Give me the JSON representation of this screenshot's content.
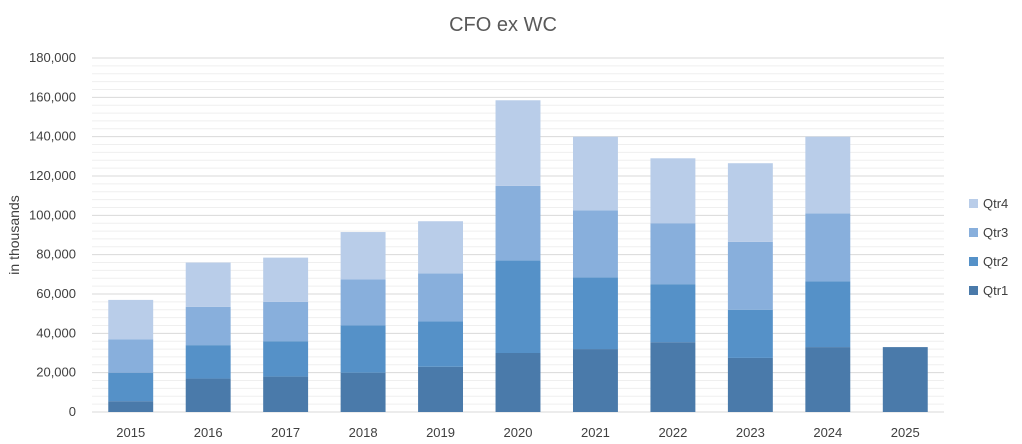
{
  "chart_data": {
    "type": "bar",
    "stacked": true,
    "title": "CFO ex WC",
    "xlabel": "",
    "ylabel": "in thousands",
    "ylim": [
      0,
      180000
    ],
    "yticks": [
      0,
      20000,
      40000,
      60000,
      80000,
      100000,
      120000,
      140000,
      160000,
      180000
    ],
    "ytick_labels": [
      "0",
      "20,000",
      "40,000",
      "60,000",
      "80,000",
      "100,000",
      "120,000",
      "140,000",
      "160,000",
      "180,000"
    ],
    "grid": true,
    "legend_position": "right",
    "categories": [
      "2015",
      "2016",
      "2017",
      "2018",
      "2019",
      "2020",
      "2021",
      "2022",
      "2023",
      "2024",
      "2025"
    ],
    "series": [
      {
        "name": "Qtr1",
        "color": "#4a7aaa",
        "values": [
          5500,
          17000,
          18000,
          20000,
          23000,
          30000,
          32000,
          35500,
          27500,
          33000,
          33000
        ]
      },
      {
        "name": "Qtr2",
        "color": "#5591c8",
        "values": [
          14500,
          17000,
          18000,
          24000,
          23000,
          47000,
          36500,
          29500,
          24500,
          33500,
          0
        ]
      },
      {
        "name": "Qtr3",
        "color": "#88afdc",
        "values": [
          17000,
          19500,
          20000,
          23500,
          24500,
          38000,
          34000,
          31000,
          34500,
          34500,
          0
        ]
      },
      {
        "name": "Qtr4",
        "color": "#b9cde9",
        "values": [
          20000,
          22500,
          22500,
          24000,
          26500,
          43500,
          37500,
          33000,
          40000,
          39000,
          0
        ]
      }
    ]
  }
}
